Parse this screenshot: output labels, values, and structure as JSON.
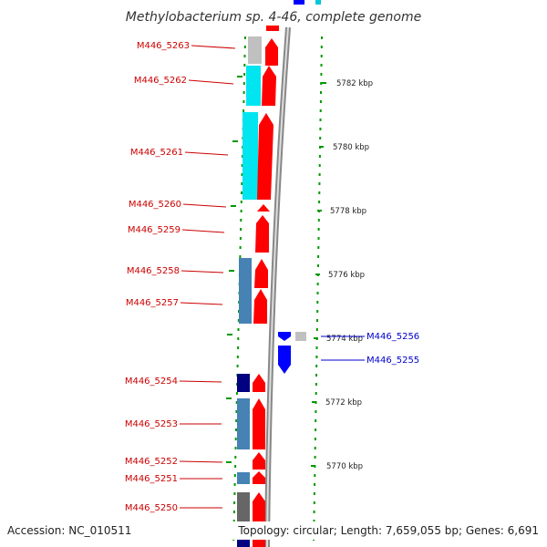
{
  "title": "Methylobacterium sp. 4-46, complete genome",
  "footer": {
    "accession": "Accession: NC_010511",
    "summary": "Topology: circular; Length: 7,659,055 bp; Genes: 6,691"
  },
  "colors": {
    "forward_gene": "#ff0000",
    "reverse_gene": "#0000ff",
    "forward_label": "#cc0000",
    "reverse_label": "#0000cc",
    "tick": "#009900",
    "cyan": "#00e5f0",
    "steel_blue": "#4682b4",
    "navy": "#000080",
    "gray": "#666666",
    "light_gray": "#c0c0c0"
  },
  "scale_ticks": [
    "5782 kbp",
    "5780 kbp",
    "5778 kbp",
    "5776 kbp",
    "5774 kbp",
    "5772 kbp",
    "5770 kbp"
  ],
  "forward_genes": [
    {
      "label": "M446_5263"
    },
    {
      "label": "M446_5262"
    },
    {
      "label": "M446_5261"
    },
    {
      "label": "M446_5260"
    },
    {
      "label": "M446_5259"
    },
    {
      "label": "M446_5258"
    },
    {
      "label": "M446_5257"
    },
    {
      "label": "M446_5254"
    },
    {
      "label": "M446_5253"
    },
    {
      "label": "M446_5252"
    },
    {
      "label": "M446_5251"
    },
    {
      "label": "M446_5250"
    }
  ],
  "reverse_genes": [
    {
      "label": "M446_5256"
    },
    {
      "label": "M446_5255"
    }
  ]
}
